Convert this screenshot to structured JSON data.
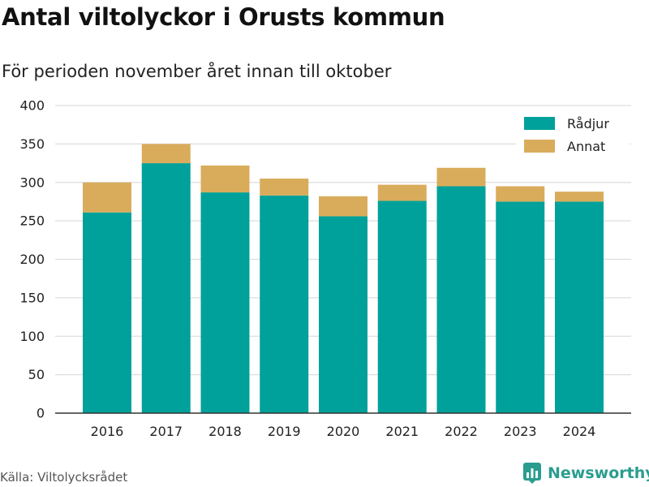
{
  "header": {
    "title": "Antal viltolyckor i Orusts kommun",
    "subtitle": "För perioden november året innan till oktober"
  },
  "footer": {
    "source": "Källa: Viltolycksrådet",
    "brand": "Newsworthy",
    "brand_icon": "newsworthy-logo-icon"
  },
  "colors": {
    "radjur": "#00a19a",
    "annat": "#d9ac5b",
    "grid": "#dddddd",
    "axis": "#333333",
    "brand": "#2a9d8f"
  },
  "chart_data": {
    "type": "bar",
    "stacked": true,
    "categories": [
      "2016",
      "2017",
      "2018",
      "2019",
      "2020",
      "2021",
      "2022",
      "2023",
      "2024"
    ],
    "series": [
      {
        "name": "Rådjur",
        "values": [
          261,
          325,
          287,
          283,
          256,
          276,
          295,
          275,
          275
        ]
      },
      {
        "name": "Annat",
        "values": [
          39,
          25,
          35,
          22,
          26,
          21,
          24,
          20,
          13
        ]
      }
    ],
    "ylim": [
      0,
      400
    ],
    "yticks": [
      "0",
      "50",
      "100",
      "150",
      "200",
      "250",
      "300",
      "350",
      "400"
    ],
    "grid": true,
    "legend": "top-right"
  }
}
